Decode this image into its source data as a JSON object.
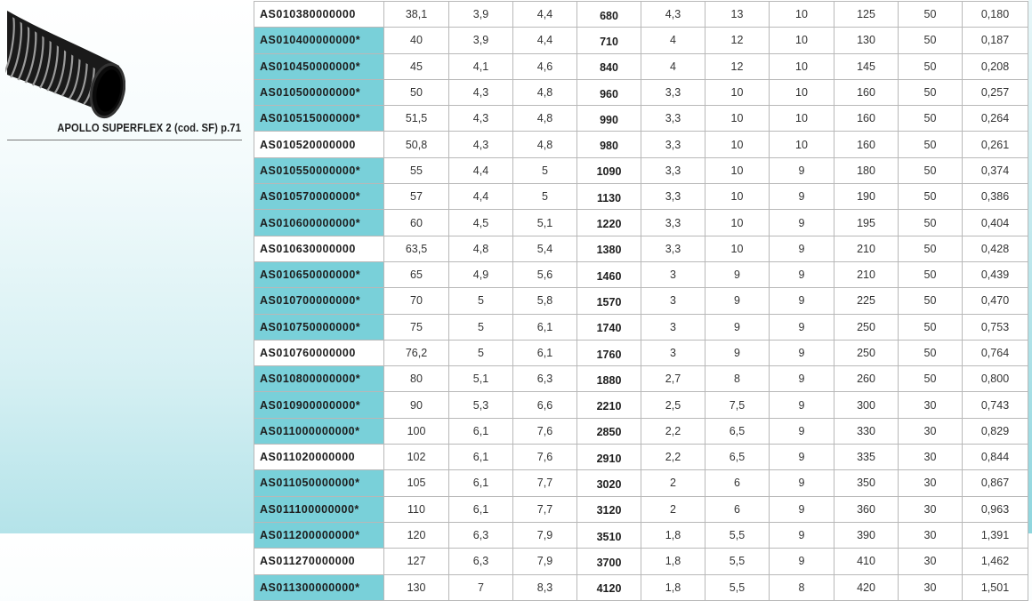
{
  "product": {
    "caption": "APOLLO SUPERFLEX 2  (cod. SF) p.71",
    "image": "black-spiral-hose"
  },
  "colors": {
    "highlight": "#79d0d9"
  },
  "rows": [
    {
      "code": "AS010380000000",
      "hl": false,
      "v": [
        "38,1",
        "3,9",
        "4,4",
        "680",
        "4,3",
        "13",
        "10",
        "125",
        "50",
        "0,180"
      ]
    },
    {
      "code": "AS010400000000*",
      "hl": true,
      "v": [
        "40",
        "3,9",
        "4,4",
        "710",
        "4",
        "12",
        "10",
        "130",
        "50",
        "0,187"
      ]
    },
    {
      "code": "AS010450000000*",
      "hl": true,
      "v": [
        "45",
        "4,1",
        "4,6",
        "840",
        "4",
        "12",
        "10",
        "145",
        "50",
        "0,208"
      ]
    },
    {
      "code": "AS010500000000*",
      "hl": true,
      "v": [
        "50",
        "4,3",
        "4,8",
        "960",
        "3,3",
        "10",
        "10",
        "160",
        "50",
        "0,257"
      ]
    },
    {
      "code": "AS010515000000*",
      "hl": true,
      "v": [
        "51,5",
        "4,3",
        "4,8",
        "990",
        "3,3",
        "10",
        "10",
        "160",
        "50",
        "0,264"
      ]
    },
    {
      "code": "AS010520000000",
      "hl": false,
      "v": [
        "50,8",
        "4,3",
        "4,8",
        "980",
        "3,3",
        "10",
        "10",
        "160",
        "50",
        "0,261"
      ]
    },
    {
      "code": "AS010550000000*",
      "hl": true,
      "v": [
        "55",
        "4,4",
        "5",
        "1090",
        "3,3",
        "10",
        "9",
        "180",
        "50",
        "0,374"
      ]
    },
    {
      "code": "AS010570000000*",
      "hl": true,
      "v": [
        "57",
        "4,4",
        "5",
        "1130",
        "3,3",
        "10",
        "9",
        "190",
        "50",
        "0,386"
      ]
    },
    {
      "code": "AS010600000000*",
      "hl": true,
      "v": [
        "60",
        "4,5",
        "5,1",
        "1220",
        "3,3",
        "10",
        "9",
        "195",
        "50",
        "0,404"
      ]
    },
    {
      "code": "AS010630000000",
      "hl": false,
      "v": [
        "63,5",
        "4,8",
        "5,4",
        "1380",
        "3,3",
        "10",
        "9",
        "210",
        "50",
        "0,428"
      ]
    },
    {
      "code": "AS010650000000*",
      "hl": true,
      "v": [
        "65",
        "4,9",
        "5,6",
        "1460",
        "3",
        "9",
        "9",
        "210",
        "50",
        "0,439"
      ]
    },
    {
      "code": "AS010700000000*",
      "hl": true,
      "v": [
        "70",
        "5",
        "5,8",
        "1570",
        "3",
        "9",
        "9",
        "225",
        "50",
        "0,470"
      ]
    },
    {
      "code": "AS010750000000*",
      "hl": true,
      "v": [
        "75",
        "5",
        "6,1",
        "1740",
        "3",
        "9",
        "9",
        "250",
        "50",
        "0,753"
      ]
    },
    {
      "code": "AS010760000000",
      "hl": false,
      "v": [
        "76,2",
        "5",
        "6,1",
        "1760",
        "3",
        "9",
        "9",
        "250",
        "50",
        "0,764"
      ]
    },
    {
      "code": "AS010800000000*",
      "hl": true,
      "v": [
        "80",
        "5,1",
        "6,3",
        "1880",
        "2,7",
        "8",
        "9",
        "260",
        "50",
        "0,800"
      ]
    },
    {
      "code": "AS010900000000*",
      "hl": true,
      "v": [
        "90",
        "5,3",
        "6,6",
        "2210",
        "2,5",
        "7,5",
        "9",
        "300",
        "30",
        "0,743"
      ]
    },
    {
      "code": "AS011000000000*",
      "hl": true,
      "v": [
        "100",
        "6,1",
        "7,6",
        "2850",
        "2,2",
        "6,5",
        "9",
        "330",
        "30",
        "0,829"
      ]
    },
    {
      "code": "AS011020000000",
      "hl": false,
      "v": [
        "102",
        "6,1",
        "7,6",
        "2910",
        "2,2",
        "6,5",
        "9",
        "335",
        "30",
        "0,844"
      ]
    },
    {
      "code": "AS011050000000*",
      "hl": true,
      "v": [
        "105",
        "6,1",
        "7,7",
        "3020",
        "2",
        "6",
        "9",
        "350",
        "30",
        "0,867"
      ]
    },
    {
      "code": "AS011100000000*",
      "hl": true,
      "v": [
        "110",
        "6,1",
        "7,7",
        "3120",
        "2",
        "6",
        "9",
        "360",
        "30",
        "0,963"
      ]
    },
    {
      "code": "AS011200000000*",
      "hl": true,
      "v": [
        "120",
        "6,3",
        "7,9",
        "3510",
        "1,8",
        "5,5",
        "9",
        "390",
        "30",
        "1,391"
      ]
    },
    {
      "code": "AS011270000000",
      "hl": false,
      "v": [
        "127",
        "6,3",
        "7,9",
        "3700",
        "1,8",
        "5,5",
        "9",
        "410",
        "30",
        "1,462"
      ]
    },
    {
      "code": "AS011300000000*",
      "hl": true,
      "v": [
        "130",
        "7",
        "8,3",
        "4120",
        "1,8",
        "5,5",
        "8",
        "420",
        "30",
        "1,501"
      ]
    }
  ]
}
